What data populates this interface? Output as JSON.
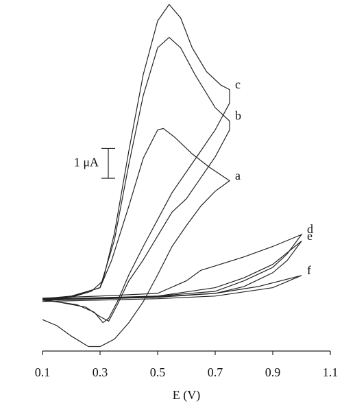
{
  "chart_data": {
    "type": "line",
    "xlabel": "E (V)",
    "xlim": [
      0.1,
      1.1
    ],
    "xticks": [
      0.1,
      0.3,
      0.5,
      0.7,
      0.9,
      1.1
    ],
    "ylim": [
      -1.75,
      10
    ],
    "scale_bar": {
      "value": 1,
      "label": "1 μA"
    },
    "series": [
      {
        "name": "a",
        "color": "#222",
        "x": [
          0.1,
          0.2,
          0.3,
          0.34,
          0.4,
          0.45,
          0.5,
          0.52,
          0.56,
          0.62,
          0.68,
          0.75,
          0.7,
          0.65,
          0.6,
          0.55,
          0.5,
          0.45,
          0.4,
          0.35,
          0.3,
          0.26,
          0.2,
          0.15,
          0.1
        ],
        "values": [
          0,
          0.09,
          0.37,
          1.28,
          3.1,
          4.7,
          5.65,
          5.7,
          5.4,
          4.85,
          4.4,
          3.95,
          3.6,
          3.1,
          2.45,
          1.75,
          0.8,
          -0.1,
          -0.8,
          -1.35,
          -1.6,
          -1.6,
          -1.25,
          -0.9,
          -0.7
        ]
      },
      {
        "name": "b",
        "color": "#222",
        "x": [
          0.1,
          0.2,
          0.3,
          0.35,
          0.4,
          0.45,
          0.5,
          0.54,
          0.58,
          0.63,
          0.7,
          0.75,
          0.75,
          0.7,
          0.65,
          0.6,
          0.55,
          0.5,
          0.45,
          0.4,
          0.36,
          0.33,
          0.3,
          0.25,
          0.15,
          0.1
        ],
        "values": [
          -0.02,
          0.07,
          0.37,
          1.97,
          4.5,
          6.8,
          8.4,
          8.75,
          8.4,
          7.5,
          6.4,
          5.95,
          5.65,
          4.75,
          4.05,
          3.35,
          2.9,
          2.1,
          1.3,
          0.6,
          -0.2,
          -0.75,
          -0.6,
          -0.28,
          -0.1,
          -0.02
        ]
      },
      {
        "name": "c",
        "color": "#222",
        "x": [
          0.1,
          0.2,
          0.27,
          0.31,
          0.35,
          0.4,
          0.45,
          0.5,
          0.54,
          0.58,
          0.62,
          0.67,
          0.72,
          0.75,
          0.75,
          0.7,
          0.65,
          0.6,
          0.55,
          0.5,
          0.45,
          0.4,
          0.36,
          0.33,
          0.31,
          0.28,
          0.22,
          0.15,
          0.1
        ],
        "values": [
          -0.05,
          0.05,
          0.25,
          0.6,
          2.2,
          4.95,
          7.5,
          9.3,
          9.85,
          9.4,
          8.4,
          7.6,
          7.15,
          7.0,
          6.55,
          5.65,
          4.95,
          4.25,
          3.55,
          2.65,
          1.75,
          0.8,
          -0.1,
          -0.65,
          -0.8,
          -0.45,
          -0.2,
          -0.1,
          -0.05
        ]
      },
      {
        "name": "d",
        "color": "#222",
        "x": [
          0.1,
          0.3,
          0.5,
          0.6,
          0.65,
          0.7,
          0.8,
          0.9,
          1.0,
          0.95,
          0.9,
          0.8,
          0.7,
          0.5,
          0.3,
          0.1
        ],
        "values": [
          0.02,
          0.09,
          0.18,
          0.6,
          0.95,
          1.1,
          1.4,
          1.75,
          2.15,
          1.5,
          1.05,
          0.6,
          0.25,
          0.09,
          0.02,
          -0.05
        ]
      },
      {
        "name": "e",
        "color": "#222",
        "x": [
          0.1,
          0.5,
          0.7,
          0.8,
          0.9,
          1.0,
          0.95,
          0.9,
          0.8,
          0.7,
          0.5,
          0.1
        ],
        "values": [
          -0.02,
          0.09,
          0.37,
          0.7,
          1.15,
          1.93,
          1.28,
          0.87,
          0.41,
          0.18,
          0.05,
          -0.05
        ]
      },
      {
        "name": "f",
        "color": "#222",
        "x": [
          0.1,
          0.5,
          0.7,
          0.85,
          1.0,
          0.9,
          0.7,
          0.5,
          0.1
        ],
        "values": [
          -0.05,
          0.07,
          0.18,
          0.41,
          0.78,
          0.37,
          0.09,
          0,
          -0.09
        ]
      }
    ]
  }
}
